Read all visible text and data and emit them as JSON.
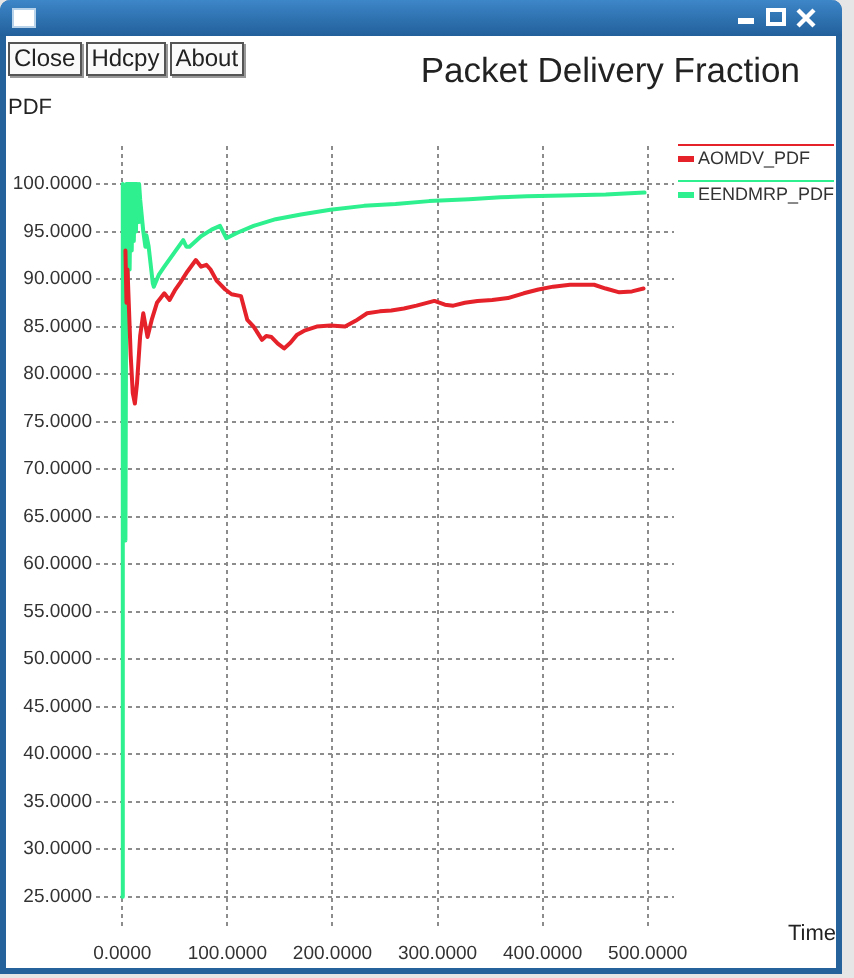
{
  "chart_data": {
    "type": "line",
    "title": "Packet Delivery Fraction",
    "xlabel": "Time",
    "ylabel": "PDF",
    "annotations": [
      "Close",
      "Hdcpy",
      "About"
    ],
    "xlim": [
      -25,
      525
    ],
    "xticks": [
      {
        "value": 0,
        "label": "0.0000"
      },
      {
        "value": 100,
        "label": "100.0000"
      },
      {
        "value": 200,
        "label": "200.0000"
      },
      {
        "value": 300,
        "label": "300.0000"
      },
      {
        "value": 400,
        "label": "400.0000"
      },
      {
        "value": 500,
        "label": "500.0000"
      }
    ],
    "ylim": [
      21.5,
      104
    ],
    "yticks": [
      {
        "value": 25,
        "label": "25.0000"
      },
      {
        "value": 30,
        "label": "30.0000"
      },
      {
        "value": 35,
        "label": "35.0000"
      },
      {
        "value": 40,
        "label": "40.0000"
      },
      {
        "value": 45,
        "label": "45.0000"
      },
      {
        "value": 50,
        "label": "50.0000"
      },
      {
        "value": 55,
        "label": "55.0000"
      },
      {
        "value": 60,
        "label": "60.0000"
      },
      {
        "value": 65,
        "label": "65.0000"
      },
      {
        "value": 70,
        "label": "70.0000"
      },
      {
        "value": 75,
        "label": "75.0000"
      },
      {
        "value": 80,
        "label": "80.0000"
      },
      {
        "value": 85,
        "label": "85.0000"
      },
      {
        "value": 90,
        "label": "90.0000"
      },
      {
        "value": 95,
        "label": "95.0000"
      },
      {
        "value": 100,
        "label": "100.0000"
      }
    ],
    "grid": true,
    "legend": "top right",
    "line_style": "solid",
    "series": [
      {
        "name": "AOMDV_PDF",
        "color": "#e5222a",
        "x": [
          3,
          4,
          5,
          6,
          8,
          10,
          12,
          14,
          17,
          20,
          24,
          28,
          33,
          40,
          45,
          50,
          55,
          62,
          70,
          75,
          80,
          84,
          90,
          98,
          104,
          113,
          119,
          125,
          133,
          137,
          142,
          148,
          154,
          160,
          166,
          174,
          185,
          198,
          212,
          222,
          233,
          245,
          256,
          268,
          280,
          297,
          307,
          315,
          326,
          338,
          352,
          367,
          382,
          396,
          410,
          426,
          438,
          449,
          460,
          473,
          485,
          496
        ],
        "values": [
          93,
          87.5,
          91,
          88,
          82,
          78,
          76.9,
          79,
          84,
          86.4,
          83.9,
          85.7,
          87.5,
          88.5,
          87.8,
          88.8,
          89.6,
          90.8,
          92,
          91.3,
          91.5,
          91,
          89.8,
          88.9,
          88.4,
          88.2,
          85.7,
          85,
          83.6,
          84,
          83.9,
          83.2,
          82.7,
          83.3,
          84.1,
          84.6,
          85,
          85.1,
          85,
          85.6,
          86.4,
          86.6,
          86.7,
          86.9,
          87.2,
          87.7,
          87.3,
          87.2,
          87.5,
          87.7,
          87.8,
          88,
          88.5,
          88.9,
          89.2,
          89.4,
          89.4,
          89.4,
          89,
          88.6,
          88.7,
          89
        ]
      },
      {
        "name": "EENDMRP_PDF",
        "color": "#2ef08e",
        "x": [
          0,
          0.5,
          3,
          4,
          5,
          6,
          7,
          8,
          9,
          10,
          11,
          12,
          13,
          14,
          15,
          16,
          17,
          20,
          22,
          23,
          25,
          29,
          30,
          35,
          40,
          49,
          58,
          61,
          64,
          75,
          85,
          93,
          99,
          110,
          125,
          146,
          170,
          198,
          230,
          260,
          292,
          330,
          360,
          385,
          420,
          460,
          497
        ],
        "values": [
          25,
          100,
          62.5,
          100,
          88,
          100,
          91,
          100,
          93,
          100,
          94,
          100,
          95,
          100,
          96,
          100,
          98.4,
          95,
          93.4,
          94.6,
          93.5,
          89.6,
          89.2,
          90.5,
          91.3,
          92.7,
          94.1,
          93.4,
          93.4,
          94.5,
          95.2,
          95.6,
          94.3,
          94.9,
          95.6,
          96.3,
          96.8,
          97.3,
          97.7,
          97.9,
          98.2,
          98.4,
          98.6,
          98.7,
          98.8,
          98.9,
          99.1
        ]
      }
    ]
  }
}
